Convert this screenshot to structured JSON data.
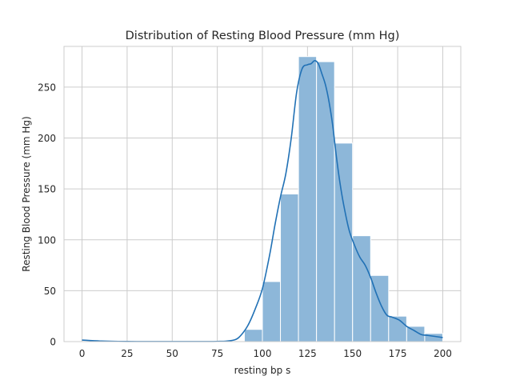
{
  "chart_data": {
    "type": "bar",
    "title": "Distribution of Resting Blood Pressure (mm Hg)",
    "xlabel": "resting bp s",
    "ylabel": "Resting Blood Pressure (mm Hg)",
    "xlim": [
      -10,
      210
    ],
    "ylim": [
      0,
      290
    ],
    "x_ticks": [
      0,
      25,
      50,
      75,
      100,
      125,
      150,
      175,
      200
    ],
    "y_ticks": [
      0,
      50,
      100,
      150,
      200,
      250
    ],
    "grid": true,
    "bins": [
      {
        "x0": 90,
        "x1": 100,
        "count": 12
      },
      {
        "x0": 100,
        "x1": 110,
        "count": 59
      },
      {
        "x0": 110,
        "x1": 120,
        "count": 145
      },
      {
        "x0": 120,
        "x1": 130,
        "count": 280
      },
      {
        "x0": 130,
        "x1": 140,
        "count": 275
      },
      {
        "x0": 140,
        "x1": 150,
        "count": 195
      },
      {
        "x0": 150,
        "x1": 160,
        "count": 104
      },
      {
        "x0": 160,
        "x1": 170,
        "count": 65
      },
      {
        "x0": 170,
        "x1": 180,
        "count": 25
      },
      {
        "x0": 180,
        "x1": 190,
        "count": 15
      },
      {
        "x0": 190,
        "x1": 200,
        "count": 8
      }
    ],
    "kde": {
      "x": [
        0,
        10,
        20,
        30,
        40,
        50,
        60,
        70,
        75,
        80,
        85,
        88,
        92,
        96,
        100,
        104,
        107,
        110,
        113,
        116,
        119,
        122,
        125,
        127,
        129,
        131,
        133,
        135,
        137,
        139,
        141,
        143,
        145,
        148,
        151,
        154,
        157,
        160,
        163,
        166,
        169,
        172,
        176,
        180,
        184,
        188,
        192,
        196,
        200
      ],
      "y": [
        1.5,
        0.6,
        0.2,
        0.1,
        0.1,
        0.1,
        0.1,
        0.1,
        0.2,
        0.5,
        2,
        6,
        16,
        32,
        52,
        85,
        115,
        142,
        165,
        200,
        245,
        268,
        272,
        273,
        276,
        273,
        263,
        252,
        235,
        212,
        182,
        156,
        135,
        110,
        95,
        83,
        75,
        63,
        48,
        35,
        26,
        24,
        21,
        15,
        11,
        7,
        6,
        5,
        4
      ]
    },
    "colors": {
      "bar_fill": "#8db7d9",
      "kde_line": "#2171b5"
    }
  }
}
